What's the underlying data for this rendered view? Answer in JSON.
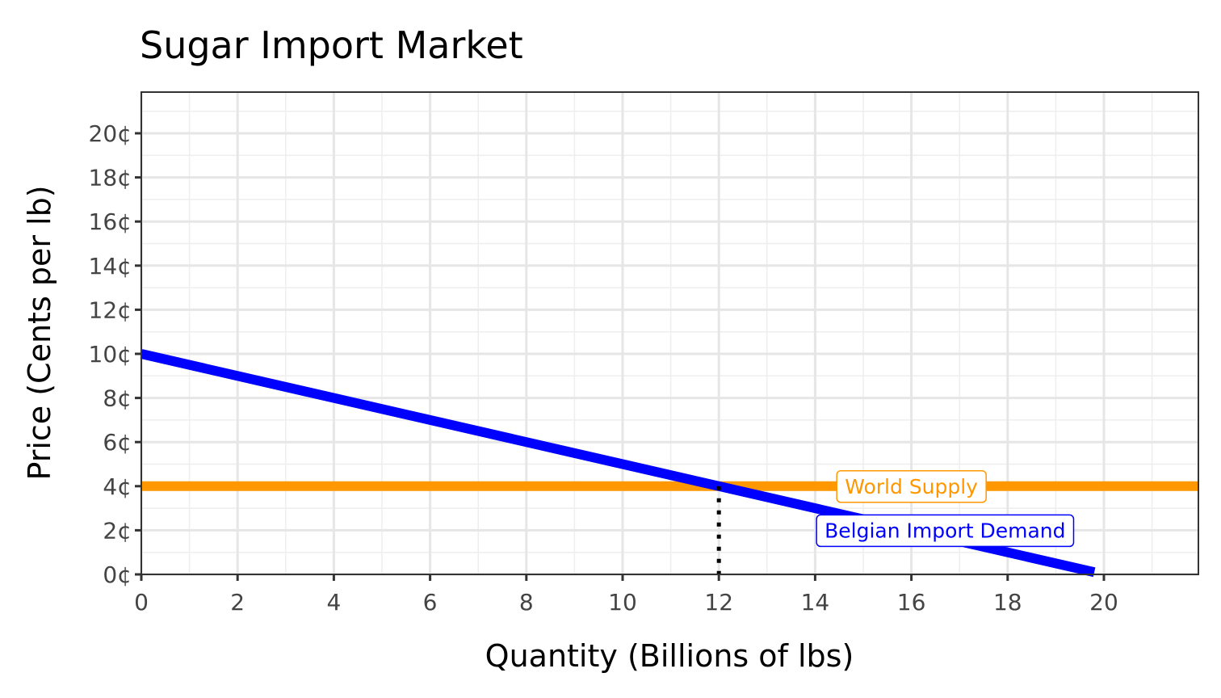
{
  "chart_data": {
    "type": "line",
    "title": "Sugar Import Market",
    "xlabel": "Quantity (Billions of lbs)",
    "ylabel": "Price (Cents per lb)",
    "xlim": [
      0,
      22
    ],
    "ylim": [
      0,
      22
    ],
    "x_ticks": [
      0,
      2,
      4,
      6,
      8,
      10,
      12,
      14,
      16,
      18,
      20
    ],
    "x_tick_labels": [
      "0",
      "2",
      "4",
      "6",
      "8",
      "10",
      "12",
      "14",
      "16",
      "18",
      "20"
    ],
    "y_ticks": [
      0,
      2,
      4,
      6,
      8,
      10,
      12,
      14,
      16,
      18,
      20
    ],
    "y_tick_labels": [
      "0¢",
      "2¢",
      "4¢",
      "6¢",
      "8¢",
      "10¢",
      "12¢",
      "14¢",
      "16¢",
      "18¢",
      "20¢"
    ],
    "grid": true,
    "series": [
      {
        "name": "Belgian Import Demand",
        "color": "#0000ff",
        "points": [
          [
            0,
            10
          ],
          [
            19.8,
            0.1
          ]
        ]
      },
      {
        "name": "World Supply",
        "color": "#ff9800",
        "points": [
          [
            0,
            4
          ],
          [
            22,
            4
          ]
        ]
      }
    ],
    "labels": [
      {
        "text": "Belgian Import Demand",
        "x": 16.7,
        "y": 2,
        "color": "#0000ff"
      },
      {
        "text": "World Supply",
        "x": 16,
        "y": 4,
        "color": "#ff9800"
      }
    ],
    "annotations": [
      {
        "type": "vline-dotted",
        "x": 12,
        "y_from": 0,
        "y_to": 4,
        "color": "#000000"
      }
    ]
  }
}
